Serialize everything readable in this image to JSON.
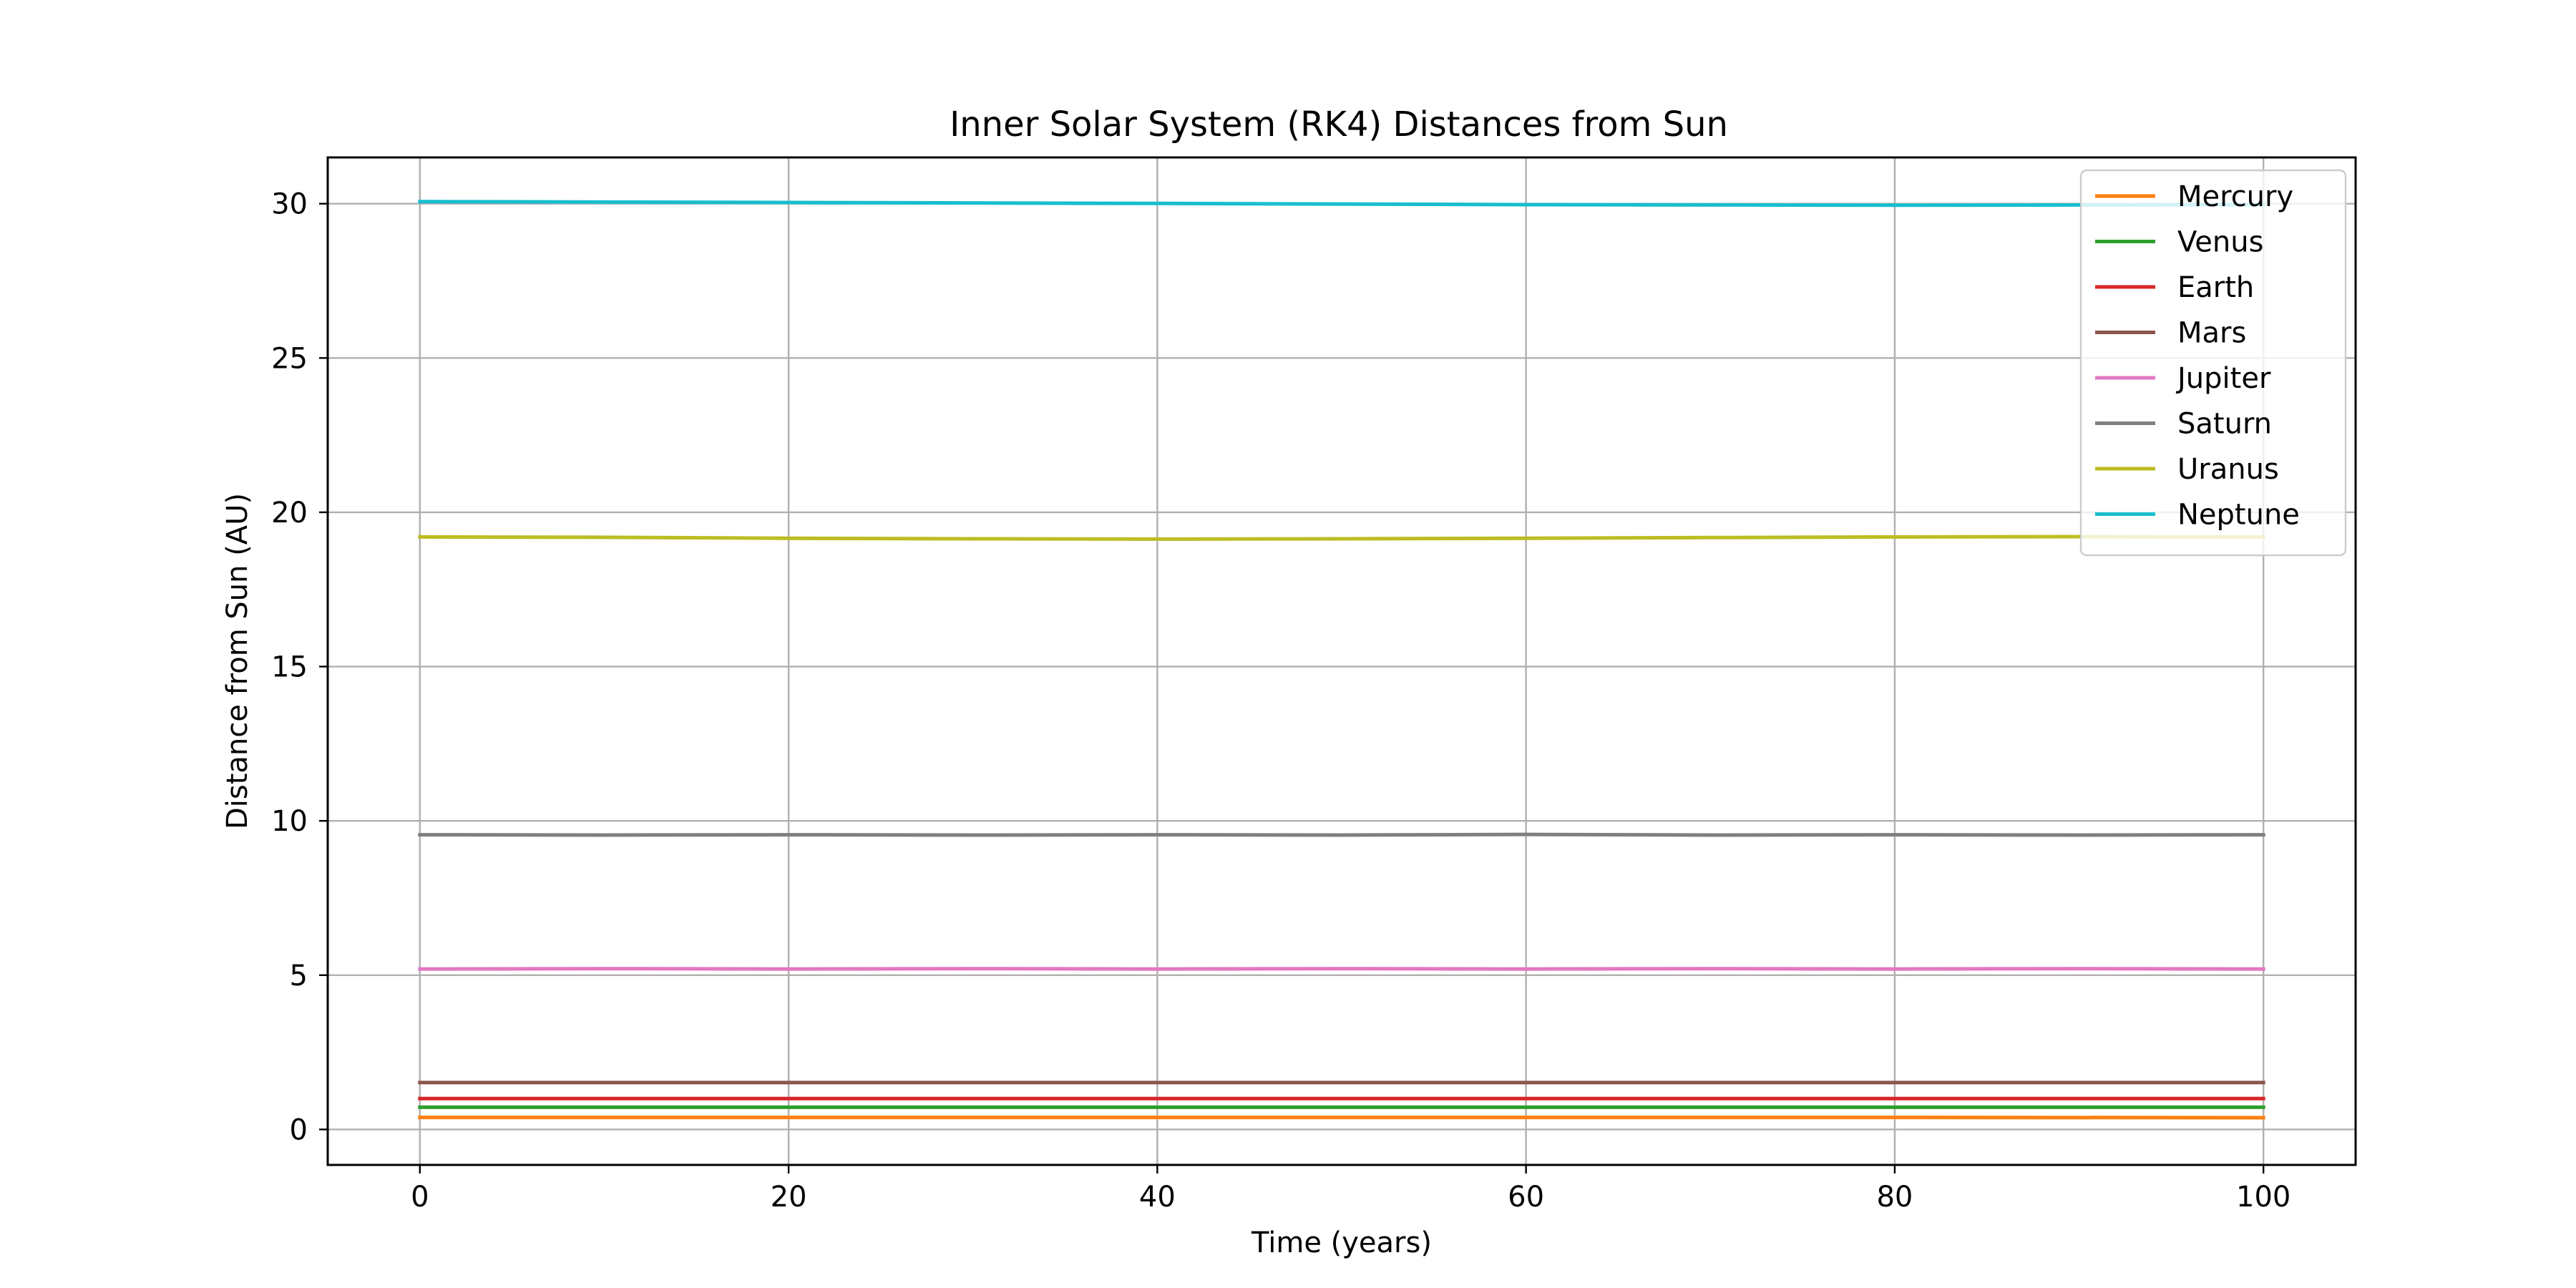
{
  "chart_data": {
    "type": "line",
    "title": "Inner Solar System (RK4) Distances from Sun",
    "xlabel": "Time (years)",
    "ylabel": "Distance from Sun (AU)",
    "xlim": [
      -5,
      105
    ],
    "ylim": [
      -1.15,
      31.5
    ],
    "xticks": [
      0,
      20,
      40,
      60,
      80,
      100
    ],
    "xtick_labels": [
      "0",
      "20",
      "40",
      "60",
      "80",
      "100"
    ],
    "yticks": [
      0,
      5,
      10,
      15,
      20,
      25,
      30
    ],
    "ytick_labels": [
      "0",
      "5",
      "10",
      "15",
      "20",
      "25",
      "30"
    ],
    "grid": true,
    "legend_position": "top-right",
    "series": [
      {
        "name": "Mercury",
        "color": "#ff7f0e",
        "x": [
          0,
          20,
          40,
          60,
          80,
          100
        ],
        "y": [
          0.39,
          0.39,
          0.39,
          0.39,
          0.39,
          0.38
        ]
      },
      {
        "name": "Venus",
        "color": "#2ca02c",
        "x": [
          0,
          20,
          40,
          60,
          80,
          100
        ],
        "y": [
          0.72,
          0.72,
          0.72,
          0.72,
          0.72,
          0.72
        ]
      },
      {
        "name": "Earth",
        "color": "#d62728",
        "x": [
          0,
          20,
          40,
          60,
          80,
          100
        ],
        "y": [
          1.0,
          1.0,
          1.0,
          1.0,
          1.0,
          1.0
        ]
      },
      {
        "name": "Mars",
        "color": "#8c564b",
        "x": [
          0,
          20,
          40,
          60,
          80,
          100
        ],
        "y": [
          1.52,
          1.52,
          1.52,
          1.52,
          1.52,
          1.52
        ]
      },
      {
        "name": "Jupiter",
        "color": "#e377c2",
        "x": [
          0,
          10,
          20,
          30,
          40,
          50,
          60,
          70,
          80,
          90,
          100
        ],
        "y": [
          5.2,
          5.21,
          5.2,
          5.21,
          5.2,
          5.21,
          5.2,
          5.21,
          5.2,
          5.21,
          5.2
        ]
      },
      {
        "name": "Saturn",
        "color": "#7f7f7f",
        "x": [
          0,
          10,
          20,
          30,
          40,
          50,
          60,
          70,
          80,
          90,
          100
        ],
        "y": [
          9.55,
          9.54,
          9.55,
          9.54,
          9.55,
          9.54,
          9.56,
          9.54,
          9.55,
          9.54,
          9.55
        ]
      },
      {
        "name": "Uranus",
        "color": "#bcbd22",
        "x": [
          0,
          10,
          20,
          30,
          40,
          50,
          60,
          70,
          80,
          90,
          100
        ],
        "y": [
          19.2,
          19.19,
          19.16,
          19.14,
          19.13,
          19.14,
          19.16,
          19.18,
          19.2,
          19.21,
          19.2
        ]
      },
      {
        "name": "Neptune",
        "color": "#17becf",
        "x": [
          0,
          20,
          40,
          60,
          80,
          100
        ],
        "y": [
          30.07,
          30.04,
          30.01,
          29.97,
          29.95,
          29.97
        ]
      }
    ]
  }
}
